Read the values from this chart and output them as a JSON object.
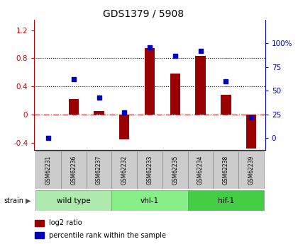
{
  "title": "GDS1379 / 5908",
  "samples": [
    "GSM62231",
    "GSM62236",
    "GSM62237",
    "GSM62232",
    "GSM62233",
    "GSM62235",
    "GSM62234",
    "GSM62238",
    "GSM62239"
  ],
  "log2_ratio": [
    0.0,
    0.22,
    0.05,
    -0.35,
    0.95,
    0.58,
    0.83,
    0.28,
    -0.48
  ],
  "percentile_pct": [
    0.0,
    62,
    43,
    27,
    96,
    87,
    92,
    60,
    22
  ],
  "groups": [
    {
      "label": "wild type",
      "start": 0,
      "end": 3,
      "color": "#aeeaae"
    },
    {
      "label": "vhl-1",
      "start": 3,
      "end": 6,
      "color": "#88ee88"
    },
    {
      "label": "hif-1",
      "start": 6,
      "end": 9,
      "color": "#44cc44"
    }
  ],
  "bar_color": "#990000",
  "dot_color": "#0000bb",
  "ylim_left": [
    -0.5,
    1.35
  ],
  "ylim_right": [
    -12.5,
    125
  ],
  "yticks_left": [
    -0.4,
    0.0,
    0.4,
    0.8,
    1.2
  ],
  "yticks_right": [
    0,
    25,
    50,
    75,
    100
  ],
  "hline_dotted": [
    0.4,
    0.8
  ],
  "hline_zero_color": "#cc3333",
  "background_color": "#ffffff",
  "strain_label": "strain",
  "legend_log2": "log2 ratio",
  "legend_pct": "percentile rank within the sample"
}
